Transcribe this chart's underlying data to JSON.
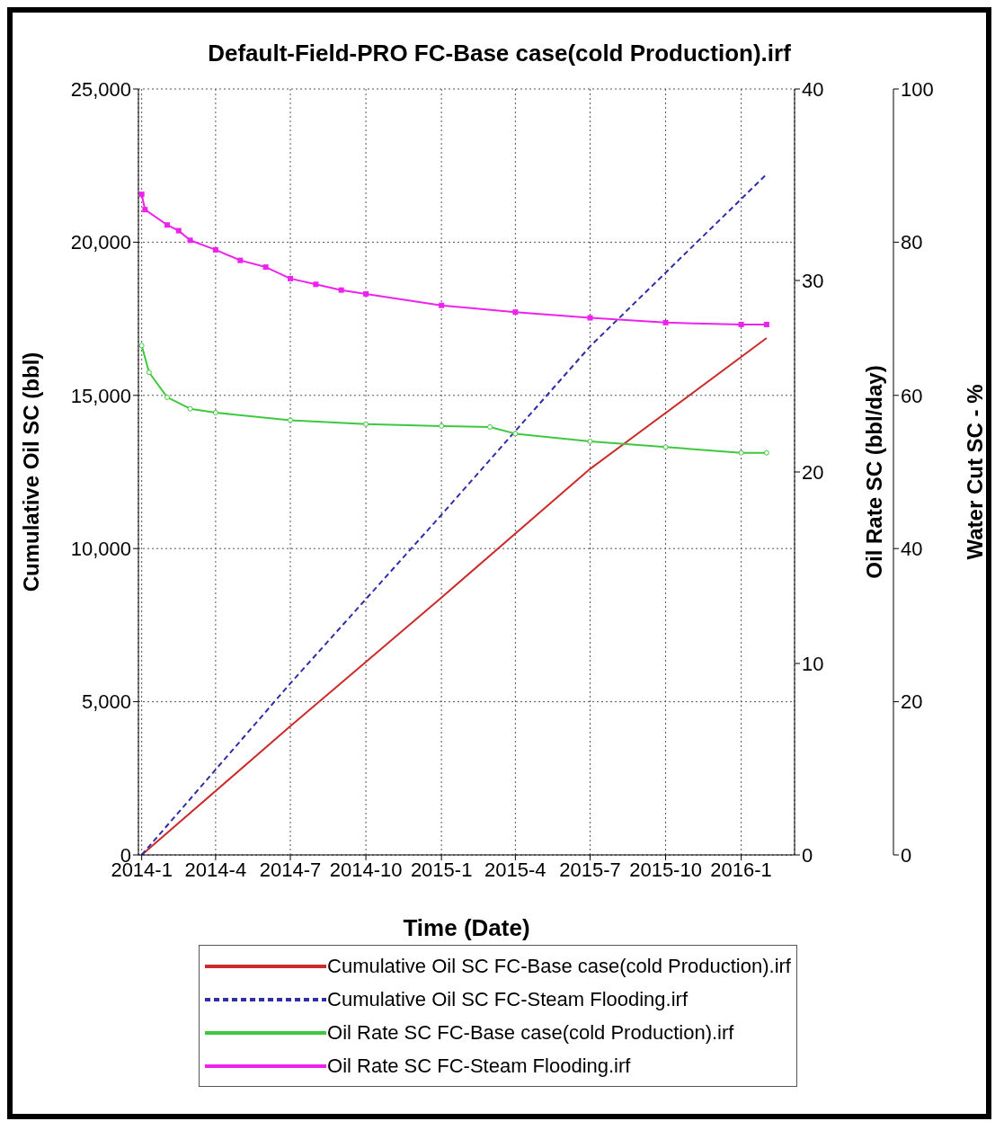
{
  "chart_data": {
    "type": "line",
    "title": "Default-Field-PRO FC-Base case(cold Production).irf",
    "xlabel": "Time (Date)",
    "ylabel": "Cumulative Oil SC (bbl)",
    "y2label": "Oil Rate SC (bbl/day)",
    "y3label": "Water Cut SC - %",
    "xlim": [
      "2013-12-28",
      "2016-03-06"
    ],
    "xticks": [
      {
        "value": "2014-01-01",
        "label": "2014-1"
      },
      {
        "value": "2014-04-01",
        "label": "2014-4"
      },
      {
        "value": "2014-07-01",
        "label": "2014-7"
      },
      {
        "value": "2014-10-01",
        "label": "2014-10"
      },
      {
        "value": "2015-01-01",
        "label": "2015-1"
      },
      {
        "value": "2015-04-01",
        "label": "2015-4"
      },
      {
        "value": "2015-07-01",
        "label": "2015-7"
      },
      {
        "value": "2015-10-01",
        "label": "2015-10"
      },
      {
        "value": "2016-01-01",
        "label": "2016-1"
      }
    ],
    "ylim": [
      0,
      25000
    ],
    "yticks": [
      {
        "value": 0,
        "label": "0"
      },
      {
        "value": 5000,
        "label": "5,000"
      },
      {
        "value": 10000,
        "label": "10,000"
      },
      {
        "value": 15000,
        "label": "15,000"
      },
      {
        "value": 20000,
        "label": "20,000"
      },
      {
        "value": 25000,
        "label": "25,000"
      }
    ],
    "y2lim": [
      0,
      40
    ],
    "y2ticks": [
      0,
      10,
      20,
      30,
      40
    ],
    "y3lim": [
      0,
      100
    ],
    "y3ticks": [
      0,
      20,
      40,
      60,
      80,
      100
    ],
    "grid": true,
    "legend": "bottom",
    "series": [
      {
        "name": "Cumulative Oil SC FC-Base case(cold Production).irf",
        "color": "#cc2b2b",
        "line_style": "solid",
        "marker": "none",
        "x": [
          "2014-01-01",
          "2014-07-01",
          "2015-01-01",
          "2015-07-01",
          "2016-02-01"
        ],
        "values": [
          0,
          4200,
          8400,
          12600,
          16870
        ]
      },
      {
        "name": "Cumulative Oil SC FC-Steam Flooding.irf",
        "color": "#2e2ea8",
        "line_style": "dashed",
        "marker": "none",
        "x": [
          "2014-01-01",
          "2014-07-01",
          "2015-01-01",
          "2015-07-01",
          "2016-02-01"
        ],
        "values": [
          0,
          5600,
          11100,
          16600,
          22220
        ]
      },
      {
        "name": "Oil Rate SC FC-Base case(cold Production).irf",
        "color": "#3fc83f",
        "line_style": "solid",
        "marker": "circle",
        "axis": "y2",
        "x": [
          "2014-01-01",
          "2014-01-10",
          "2014-02-01",
          "2014-03-01",
          "2014-04-01",
          "2014-07-01",
          "2014-10-01",
          "2015-01-01",
          "2015-03-01",
          "2015-04-01",
          "2015-07-01",
          "2015-10-01",
          "2016-01-01",
          "2016-02-01"
        ],
        "values": [
          26.6,
          25.2,
          23.9,
          23.3,
          23.1,
          22.7,
          22.5,
          22.4,
          22.35,
          22.0,
          21.6,
          21.3,
          21.0,
          21.0
        ]
      },
      {
        "name": "Oil Rate SC FC-Steam Flooding.irf",
        "color": "#ee22ee",
        "line_style": "solid",
        "marker": "square",
        "axis": "y2",
        "x": [
          "2014-01-01",
          "2014-01-05",
          "2014-02-01",
          "2014-02-15",
          "2014-03-01",
          "2014-04-01",
          "2014-05-01",
          "2014-06-01",
          "2014-07-01",
          "2014-08-01",
          "2014-09-01",
          "2014-10-01",
          "2015-01-01",
          "2015-04-01",
          "2015-07-01",
          "2015-10-01",
          "2016-01-01",
          "2016-02-01"
        ],
        "values": [
          34.5,
          33.7,
          32.9,
          32.6,
          32.1,
          31.6,
          31.05,
          30.7,
          30.1,
          29.8,
          29.5,
          29.3,
          28.7,
          28.35,
          28.05,
          27.8,
          27.7,
          27.7
        ]
      }
    ]
  }
}
